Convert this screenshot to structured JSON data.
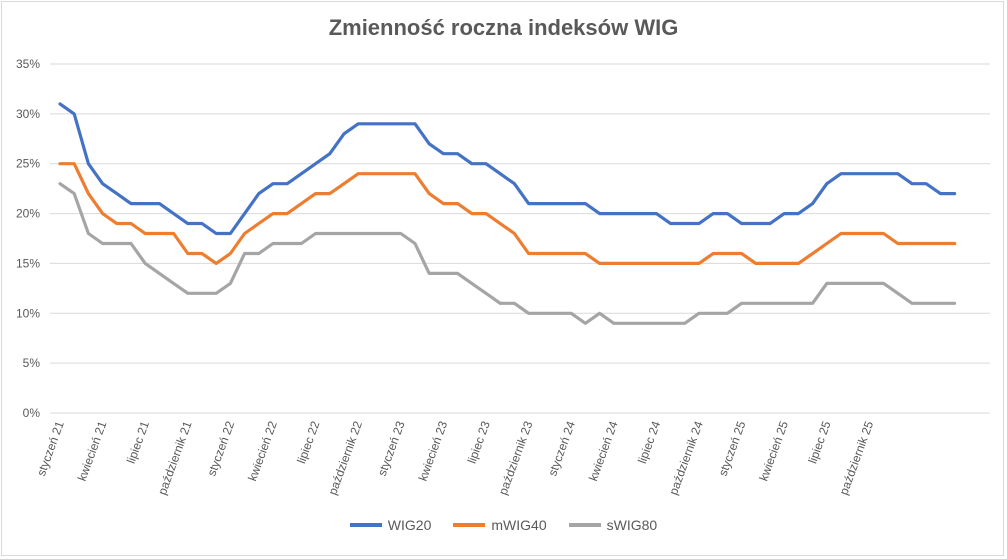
{
  "chart_data": {
    "type": "line",
    "title": "Zmienność roczna indeksów WIG",
    "xlabel": "",
    "ylabel": "",
    "ylim": [
      0,
      35
    ],
    "y_ticks": [
      "0%",
      "5%",
      "10%",
      "15%",
      "20%",
      "25%",
      "30%",
      "35%"
    ],
    "y_tick_values": [
      0,
      5,
      10,
      15,
      20,
      25,
      30,
      35
    ],
    "grid": true,
    "legend_position": "bottom",
    "x_tick_labels": [
      "styczeń 21",
      "kwiecień 21",
      "lipiec 21",
      "październik 21",
      "styczeń 22",
      "kwiecień 22",
      "lipiec 22",
      "październik 22",
      "styczeń 23",
      "kwiecień 23",
      "lipiec 23",
      "październik 23",
      "styczeń 24",
      "kwiecień 24",
      "lipiec 24",
      "październik 24",
      "styczeń 25",
      "kwiecień 25",
      "lipiec 25",
      "październik 25"
    ],
    "series": [
      {
        "name": "WIG20",
        "color": "#4472c4",
        "values": [
          31,
          30,
          25,
          23,
          22,
          21,
          21,
          21,
          20,
          19,
          19,
          18,
          18,
          20,
          22,
          23,
          23,
          24,
          25,
          26,
          28,
          29,
          29,
          29,
          29,
          29,
          27,
          26,
          26,
          25,
          25,
          24,
          23,
          21,
          21,
          21,
          21,
          21,
          20,
          20,
          20,
          20,
          20,
          19,
          19,
          19,
          20,
          20,
          19,
          19,
          19,
          20,
          20,
          21,
          23,
          24,
          24,
          24,
          24,
          24,
          23,
          23,
          22,
          22
        ]
      },
      {
        "name": "mWIG40",
        "color": "#ed7d31",
        "values": [
          25,
          25,
          22,
          20,
          19,
          19,
          18,
          18,
          18,
          16,
          16,
          15,
          16,
          18,
          19,
          20,
          20,
          21,
          22,
          22,
          23,
          24,
          24,
          24,
          24,
          24,
          22,
          21,
          21,
          20,
          20,
          19,
          18,
          16,
          16,
          16,
          16,
          16,
          15,
          15,
          15,
          15,
          15,
          15,
          15,
          15,
          16,
          16,
          16,
          15,
          15,
          15,
          15,
          16,
          17,
          18,
          18,
          18,
          18,
          17,
          17,
          17,
          17,
          17
        ]
      },
      {
        "name": "sWIG80",
        "color": "#a5a5a5",
        "values": [
          23,
          22,
          18,
          17,
          17,
          17,
          15,
          14,
          13,
          12,
          12,
          12,
          13,
          16,
          16,
          17,
          17,
          17,
          18,
          18,
          18,
          18,
          18,
          18,
          18,
          17,
          14,
          14,
          14,
          13,
          12,
          11,
          11,
          10,
          10,
          10,
          10,
          9,
          10,
          9,
          9,
          9,
          9,
          9,
          9,
          10,
          10,
          10,
          11,
          11,
          11,
          11,
          11,
          11,
          13,
          13,
          13,
          13,
          13,
          12,
          11,
          11,
          11,
          11
        ]
      }
    ]
  }
}
